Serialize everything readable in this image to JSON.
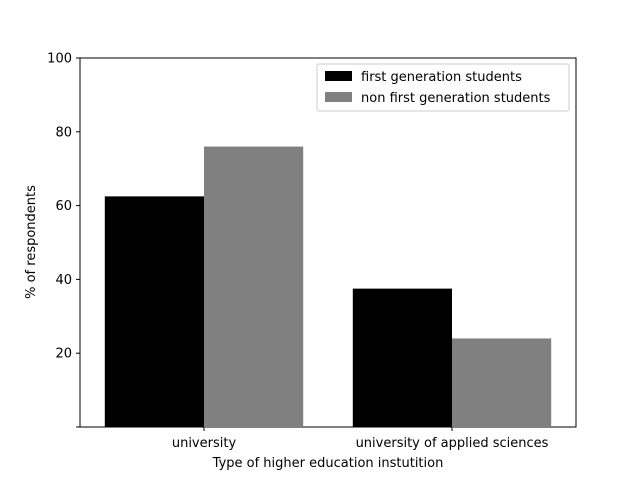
{
  "chart_data": {
    "type": "bar",
    "title": "",
    "xlabel": "Type of higher education instutition",
    "ylabel": "% of respondents",
    "categories": [
      "university",
      "university of applied sciences"
    ],
    "series": [
      {
        "name": "first generation students",
        "values": [
          62.5,
          37.5
        ],
        "color": "#000000"
      },
      {
        "name": "non first generation students",
        "values": [
          76,
          24
        ],
        "color": "#808080"
      }
    ],
    "ylim": [
      0,
      100
    ],
    "yticks": [
      20,
      40,
      60,
      80,
      100
    ],
    "ytick_labels": [
      "20",
      "40",
      "60",
      "80",
      "100"
    ],
    "grid": false,
    "legend_position": "top-right"
  }
}
